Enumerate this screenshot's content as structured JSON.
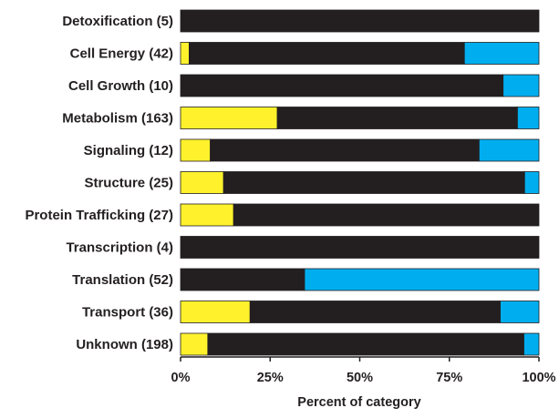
{
  "chart_data": {
    "type": "bar",
    "stacked": true,
    "orientation": "horizontal",
    "xlabel": "Percent of category",
    "xlim": [
      0,
      100
    ],
    "xticks": [
      "0%",
      "25%",
      "50%",
      "75%",
      "100%"
    ],
    "categories": [
      "Detoxification (5)",
      "Cell Energy (42)",
      "Cell Growth (10)",
      "Metabolism (163)",
      "Signaling (12)",
      "Structure (25)",
      "Protein Trafficking (27)",
      "Transcription (4)",
      "Translation (52)",
      "Transport (36)",
      "Unknown (198)"
    ],
    "series": [
      {
        "color": "#fff22d",
        "values": [
          0,
          2.4,
          0,
          27,
          8.3,
          12,
          14.8,
          0,
          0,
          19.4,
          7.6
        ]
      },
      {
        "color": "#231f20",
        "values": [
          100,
          76.8,
          90,
          67,
          75,
          84,
          85.2,
          100,
          34.6,
          69.8,
          88.2
        ]
      },
      {
        "color": "#00aeef",
        "values": [
          0,
          20.8,
          10,
          6,
          16.7,
          4,
          0,
          0,
          65.4,
          10.8,
          4.2
        ]
      }
    ]
  }
}
